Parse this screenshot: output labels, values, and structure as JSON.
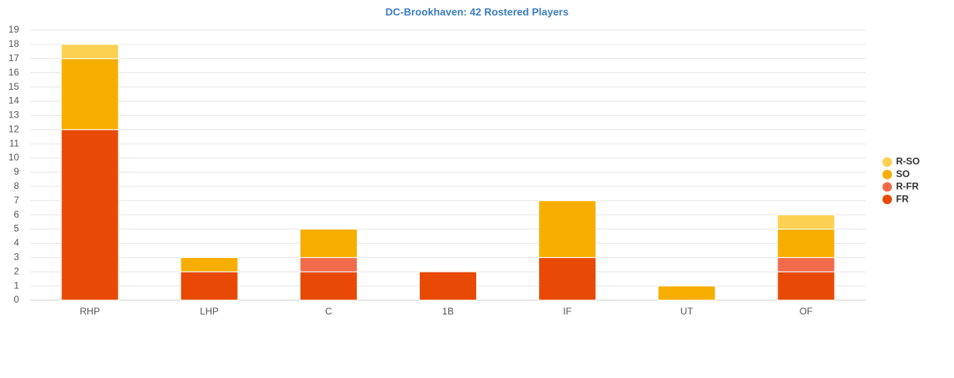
{
  "chart_data": {
    "type": "stacked_bar",
    "title": "DC-Brookhaven: 42 Rostered Players",
    "categories": [
      "RHP",
      "LHP",
      "C",
      "1B",
      "IF",
      "UT",
      "OF"
    ],
    "series": [
      {
        "name": "FR",
        "color": "#e84a05",
        "values": [
          12,
          2,
          2,
          2,
          3,
          0,
          2
        ]
      },
      {
        "name": "R-FR",
        "color": "#f26b4a",
        "values": [
          0,
          0,
          1,
          0,
          0,
          0,
          1
        ]
      },
      {
        "name": "SO",
        "color": "#f7ae00",
        "values": [
          5,
          1,
          2,
          0,
          4,
          1,
          2
        ]
      },
      {
        "name": "R-SO",
        "color": "#fcd050",
        "values": [
          1,
          0,
          0,
          0,
          0,
          0,
          1
        ]
      }
    ],
    "ylim": [
      0,
      19
    ],
    "yticks": [
      0,
      1,
      2,
      3,
      4,
      5,
      6,
      7,
      8,
      9,
      10,
      11,
      12,
      13,
      14,
      15,
      16,
      17,
      18,
      19
    ],
    "grid": true,
    "legend": "right"
  }
}
